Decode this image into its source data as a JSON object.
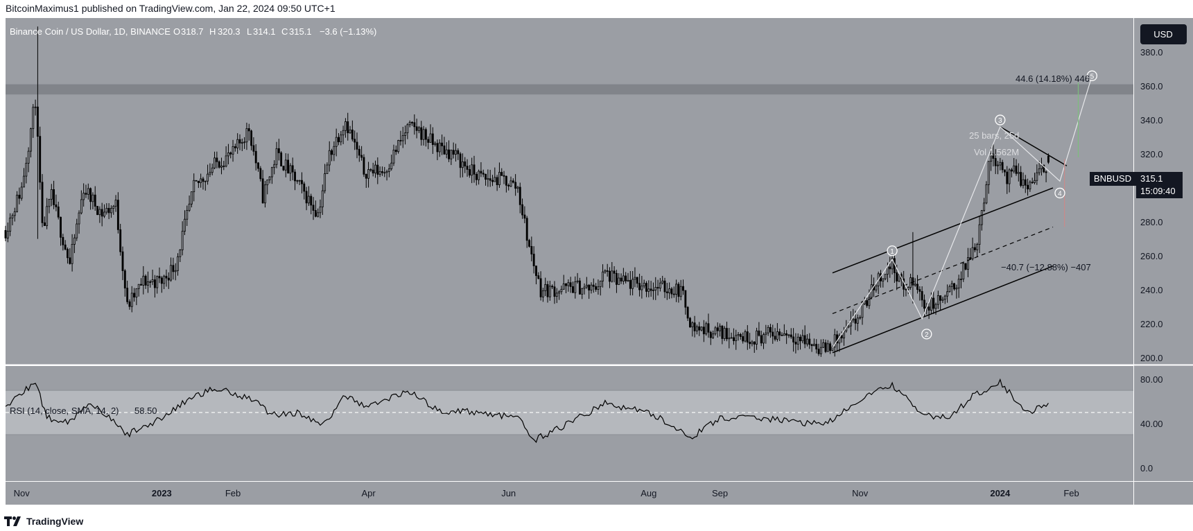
{
  "header": {
    "published": "BitcoinMaximus1 published on TradingView.com, Jan 22, 2024 09:50 UTC+1"
  },
  "footer": {
    "brand": "TradingView"
  },
  "legend": {
    "symbol": "Binance Coin / US Dollar, 1D, BINANCE",
    "o_label": "O",
    "o": "318.7",
    "h_label": "H",
    "h": "320.3",
    "l_label": "L",
    "l": "314.1",
    "c_label": "C",
    "c": "315.1",
    "change": "−3.6 (−1.13%)"
  },
  "currency_button": "USD",
  "price_tag": {
    "ticker": "BNBUSD",
    "price": "315.1",
    "countdown": "15:09:40"
  },
  "annotations": {
    "target": "44.6 (14.18%) 446",
    "drop": "−40.7 (−12.88%) −407",
    "bars": "25 bars, 25d",
    "vol": "Vol 1.562M"
  },
  "rsi_legend": {
    "label": "RSI (14, close, SMA, 14, 2)",
    "value": "58.50"
  },
  "colors": {
    "plot_bg": "#9b9ea4",
    "candle": "#000000",
    "resistance_zone": "#7e8187",
    "rsi_band": "#b5b8bd",
    "accent": "#131722"
  },
  "chart_data": [
    {
      "type": "candlestick",
      "title": "Binance Coin / US Dollar, 1D, BINANCE",
      "y_axis": {
        "ticks": [
          "200.0",
          "220.0",
          "240.0",
          "260.0",
          "280.0",
          "300.0",
          "320.0",
          "340.0",
          "360.0",
          "380.0"
        ],
        "range": [
          196,
          400
        ]
      },
      "x_axis": {
        "ticks": [
          "Nov",
          "2023",
          "Feb",
          "Apr",
          "Jun",
          "Aug",
          "Sep",
          "Nov",
          "2024",
          "Feb"
        ],
        "bold": [
          "2023",
          "2024"
        ],
        "range": [
          "2022-10-25",
          "2024-02-28"
        ]
      },
      "grid": false,
      "close_path": [
        [
          "2022-10-25",
          275
        ],
        [
          "2022-11-01",
          300
        ],
        [
          "2022-11-07",
          352
        ],
        [
          "2022-11-10",
          275
        ],
        [
          "2022-11-14",
          295
        ],
        [
          "2022-11-22",
          255
        ],
        [
          "2022-11-28",
          300
        ],
        [
          "2022-12-06",
          285
        ],
        [
          "2022-12-12",
          290
        ],
        [
          "2022-12-17",
          230
        ],
        [
          "2022-12-24",
          245
        ],
        [
          "2023-01-01",
          245
        ],
        [
          "2023-01-07",
          255
        ],
        [
          "2023-01-15",
          300
        ],
        [
          "2023-01-25",
          315
        ],
        [
          "2023-02-01",
          320
        ],
        [
          "2023-02-08",
          335
        ],
        [
          "2023-02-14",
          295
        ],
        [
          "2023-02-20",
          320
        ],
        [
          "2023-02-28",
          305
        ],
        [
          "2023-03-10",
          285
        ],
        [
          "2023-03-15",
          320
        ],
        [
          "2023-03-22",
          340
        ],
        [
          "2023-03-30",
          310
        ],
        [
          "2023-04-08",
          310
        ],
        [
          "2023-04-18",
          335
        ],
        [
          "2023-04-22",
          335
        ],
        [
          "2023-04-30",
          325
        ],
        [
          "2023-05-08",
          320
        ],
        [
          "2023-05-15",
          310
        ],
        [
          "2023-05-22",
          305
        ],
        [
          "2023-05-30",
          305
        ],
        [
          "2023-06-05",
          300
        ],
        [
          "2023-06-10",
          265
        ],
        [
          "2023-06-15",
          240
        ],
        [
          "2023-06-22",
          240
        ],
        [
          "2023-06-30",
          242
        ],
        [
          "2023-07-08",
          240
        ],
        [
          "2023-07-13",
          250
        ],
        [
          "2023-07-18",
          245
        ],
        [
          "2023-08-01",
          242
        ],
        [
          "2023-08-15",
          240
        ],
        [
          "2023-08-20",
          218
        ],
        [
          "2023-09-01",
          215
        ],
        [
          "2023-09-15",
          212
        ],
        [
          "2023-09-30",
          215
        ],
        [
          "2023-10-08",
          210
        ],
        [
          "2023-10-16",
          205
        ],
        [
          "2023-10-24",
          212
        ],
        [
          "2023-11-01",
          225
        ],
        [
          "2023-11-08",
          245
        ],
        [
          "2023-11-15",
          255
        ],
        [
          "2023-11-20",
          240
        ],
        [
          "2023-11-24",
          245
        ],
        [
          "2023-11-30",
          230
        ],
        [
          "2023-12-08",
          235
        ],
        [
          "2023-12-15",
          248
        ],
        [
          "2023-12-22",
          270
        ],
        [
          "2023-12-28",
          320
        ],
        [
          "2024-01-01",
          315
        ],
        [
          "2024-01-04",
          305
        ],
        [
          "2024-01-08",
          310
        ],
        [
          "2024-01-12",
          300
        ],
        [
          "2024-01-16",
          305
        ],
        [
          "2024-01-19",
          310
        ],
        [
          "2024-01-22",
          315
        ]
      ],
      "spikes": [
        {
          "date": "2022-11-08",
          "high": 395,
          "low": 270
        },
        {
          "date": "2023-11-24",
          "high": 274,
          "low": 232
        }
      ],
      "last": {
        "open": 318.7,
        "high": 320.3,
        "low": 314.1,
        "close": 315.1
      },
      "resistance_zone": [
        355,
        361
      ],
      "channel": {
        "upper": [
          [
            "2023-10-20",
            250
          ],
          [
            "2024-01-24",
            300
          ]
        ],
        "middle": [
          [
            "2023-10-20",
            226
          ],
          [
            "2024-01-24",
            277
          ]
        ],
        "lower": [
          [
            "2023-10-20",
            203
          ],
          [
            "2024-01-24",
            254
          ]
        ]
      },
      "wedge_top": [
        [
          "2024-01-01",
          336
        ],
        [
          "2024-01-30",
          313
        ]
      ],
      "wave_path": [
        [
          "2023-10-20",
          206
        ],
        [
          "2023-11-15",
          258
        ],
        [
          "2023-11-28",
          223
        ],
        [
          "2024-01-01",
          336
        ],
        [
          "2024-01-27",
          304
        ],
        [
          "2024-02-10",
          366
        ]
      ],
      "wave_labels": [
        "1",
        "2",
        "3",
        "4",
        "5"
      ],
      "wave_label_points": [
        [
          "2023-11-15",
          263
        ],
        [
          "2023-11-30",
          214
        ],
        [
          "2024-01-01",
          340
        ],
        [
          "2024-01-27",
          297
        ],
        [
          "2024-02-10",
          366
        ]
      ],
      "measure_up": {
        "date": "2024-02-04",
        "from": 318,
        "to": 362
      },
      "measure_down": {
        "date": "2024-01-29",
        "from": 317,
        "to": 277
      }
    },
    {
      "type": "line",
      "title": "RSI (14, close, SMA, 14, 2)",
      "y_axis": {
        "ticks": [
          "0.0",
          "40.00",
          "80.00"
        ],
        "range": [
          -12,
          92
        ]
      },
      "band": [
        30,
        70
      ],
      "midline": 50,
      "values_path": [
        [
          "2022-10-25",
          55
        ],
        [
          "2022-11-07",
          78
        ],
        [
          "2022-11-12",
          45
        ],
        [
          "2022-11-22",
          42
        ],
        [
          "2022-12-01",
          60
        ],
        [
          "2022-12-17",
          30
        ],
        [
          "2023-01-01",
          45
        ],
        [
          "2023-01-15",
          65
        ],
        [
          "2023-01-25",
          72
        ],
        [
          "2023-02-10",
          62
        ],
        [
          "2023-02-18",
          48
        ],
        [
          "2023-03-01",
          50
        ],
        [
          "2023-03-12",
          38
        ],
        [
          "2023-03-22",
          65
        ],
        [
          "2023-04-01",
          55
        ],
        [
          "2023-04-18",
          70
        ],
        [
          "2023-05-01",
          52
        ],
        [
          "2023-05-20",
          50
        ],
        [
          "2023-06-05",
          45
        ],
        [
          "2023-06-12",
          25
        ],
        [
          "2023-06-25",
          38
        ],
        [
          "2023-07-13",
          58
        ],
        [
          "2023-08-01",
          50
        ],
        [
          "2023-08-20",
          28
        ],
        [
          "2023-09-01",
          45
        ],
        [
          "2023-09-20",
          45
        ],
        [
          "2023-10-10",
          40
        ],
        [
          "2023-10-20",
          42
        ],
        [
          "2023-11-01",
          62
        ],
        [
          "2023-11-15",
          75
        ],
        [
          "2023-11-28",
          48
        ],
        [
          "2023-12-10",
          45
        ],
        [
          "2023-12-20",
          65
        ],
        [
          "2024-01-01",
          78
        ],
        [
          "2024-01-10",
          55
        ],
        [
          "2024-01-15",
          52
        ],
        [
          "2024-01-22",
          58.5
        ]
      ]
    }
  ]
}
